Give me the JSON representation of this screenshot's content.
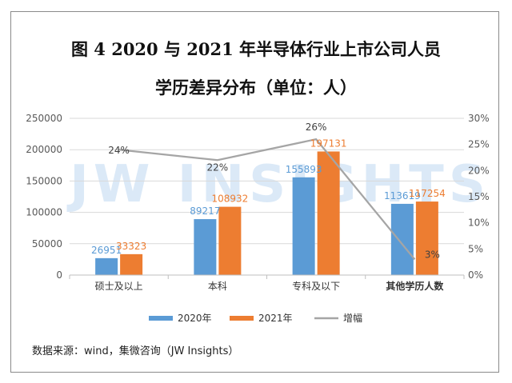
{
  "title_lines": [
    "图 4 2020 与 2021 年半导体行业上市公司人员",
    "学历差异分布（单位：人）"
  ],
  "source": "数据来源：wind，集微咨询（JW Insights）",
  "watermark": "JW INSIGHTS",
  "colors": {
    "s2020": "#5b9bd5",
    "s2021": "#ed7d31",
    "growth": "#a5a5a5",
    "axis": "#bfbfbf",
    "grid": "#d9d9d9",
    "tick": "#595959"
  },
  "chart_data": {
    "type": "bar",
    "categories": [
      "硕士及以上",
      "本科",
      "专科及以下",
      "其他学历人数"
    ],
    "series": [
      {
        "name": "2020年",
        "values": [
          26951,
          89217,
          155893,
          113619
        ]
      },
      {
        "name": "2021年",
        "values": [
          33323,
          108932,
          197131,
          117254
        ]
      }
    ],
    "line_series": {
      "name": "增幅",
      "values": [
        24,
        22,
        26,
        3
      ],
      "labels": [
        "24%",
        "22%",
        "26%",
        "3%"
      ]
    },
    "ylim": [
      0,
      250000
    ],
    "yticks": [
      "0",
      "50000",
      "100000",
      "150000",
      "200000",
      "250000"
    ],
    "y2lim": [
      0,
      30
    ],
    "y2ticks": [
      "0%",
      "5%",
      "10%",
      "15%",
      "20%",
      "25%",
      "30%"
    ],
    "legend": [
      "2020年",
      "2021年",
      "增幅"
    ],
    "legend_position": "bottom"
  }
}
